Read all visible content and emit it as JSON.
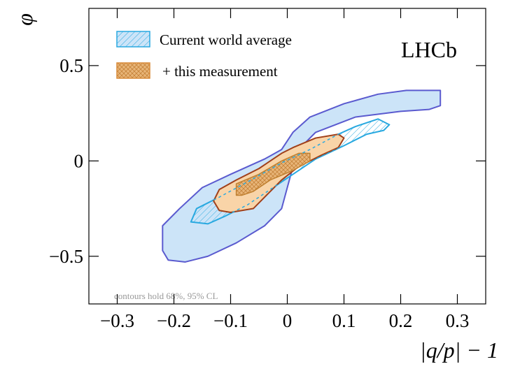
{
  "chart_data": {
    "type": "contour",
    "xlabel": "|q/p| − 1",
    "ylabel": "φ",
    "annotation": "LHCb",
    "note": "contours hold 68%, 95% CL",
    "xlim": [
      -0.35,
      0.35
    ],
    "ylim": [
      -0.75,
      0.8
    ],
    "xticks": [
      {
        "value": -0.3,
        "label": "−0.3"
      },
      {
        "value": -0.2,
        "label": "−0.2"
      },
      {
        "value": -0.1,
        "label": "−0.1"
      },
      0,
      0.1,
      0.2,
      0.3
    ],
    "yticks": [
      {
        "value": -0.5,
        "label": "−0.5"
      },
      0,
      0.5
    ],
    "series": [
      {
        "name": "Current world average",
        "color": "#29a9e0",
        "contours": [
          {
            "x": [
              -0.22,
              -0.22,
              -0.19,
              -0.15,
              -0.1,
              -0.04,
              -0.01,
              0.01,
              0.04,
              0.1,
              0.16,
              0.21,
              0.27,
              0.27,
              0.25,
              0.2,
              0.12,
              0.05,
              0.02,
              0.01,
              0,
              -0.01,
              -0.04,
              -0.09,
              -0.14,
              -0.18,
              -0.21
            ],
            "y": [
              -0.47,
              -0.34,
              -0.25,
              -0.14,
              -0.07,
              0.01,
              0.06,
              0.15,
              0.23,
              0.3,
              0.35,
              0.37,
              0.37,
              0.29,
              0.27,
              0.26,
              0.23,
              0.15,
              0.06,
              -0.03,
              -0.14,
              -0.25,
              -0.34,
              -0.43,
              -0.5,
              -0.53,
              -0.52
            ]
          },
          {
            "x": [
              -0.17,
              -0.16,
              -0.12,
              -0.07,
              -0.01,
              0.04,
              0.09,
              0.12,
              0.16,
              0.18,
              0.17,
              0.14,
              0.1,
              0.05,
              -0.01,
              -0.07,
              -0.11,
              -0.14
            ],
            "y": [
              -0.32,
              -0.25,
              -0.19,
              -0.11,
              -0.01,
              0.06,
              0.14,
              0.18,
              0.22,
              0.19,
              0.16,
              0.14,
              0.08,
              0.01,
              -0.11,
              -0.23,
              -0.29,
              -0.33
            ]
          }
        ]
      },
      {
        "name": "+ this measurement",
        "color": "#d98c3a",
        "contours": [
          {
            "x": [
              -0.13,
              -0.12,
              -0.09,
              -0.05,
              -0.01,
              0.01,
              0.05,
              0.09,
              0.1,
              0.09,
              0.06,
              0.02,
              -0.01,
              -0.04,
              -0.06,
              -0.1,
              -0.12
            ],
            "y": [
              -0.21,
              -0.15,
              -0.1,
              -0.04,
              0.04,
              0.07,
              0.12,
              0.14,
              0.12,
              0.07,
              0.03,
              -0.03,
              -0.1,
              -0.19,
              -0.25,
              -0.27,
              -0.26
            ]
          },
          {
            "x": [
              -0.09,
              -0.09,
              -0.05,
              -0.01,
              0.02,
              0.04,
              0.04,
              0.01,
              -0.03,
              -0.06,
              -0.08
            ],
            "y": [
              -0.18,
              -0.12,
              -0.07,
              0,
              0.04,
              0.04,
              0,
              -0.05,
              -0.1,
              -0.16,
              -0.18
            ]
          }
        ]
      }
    ]
  }
}
